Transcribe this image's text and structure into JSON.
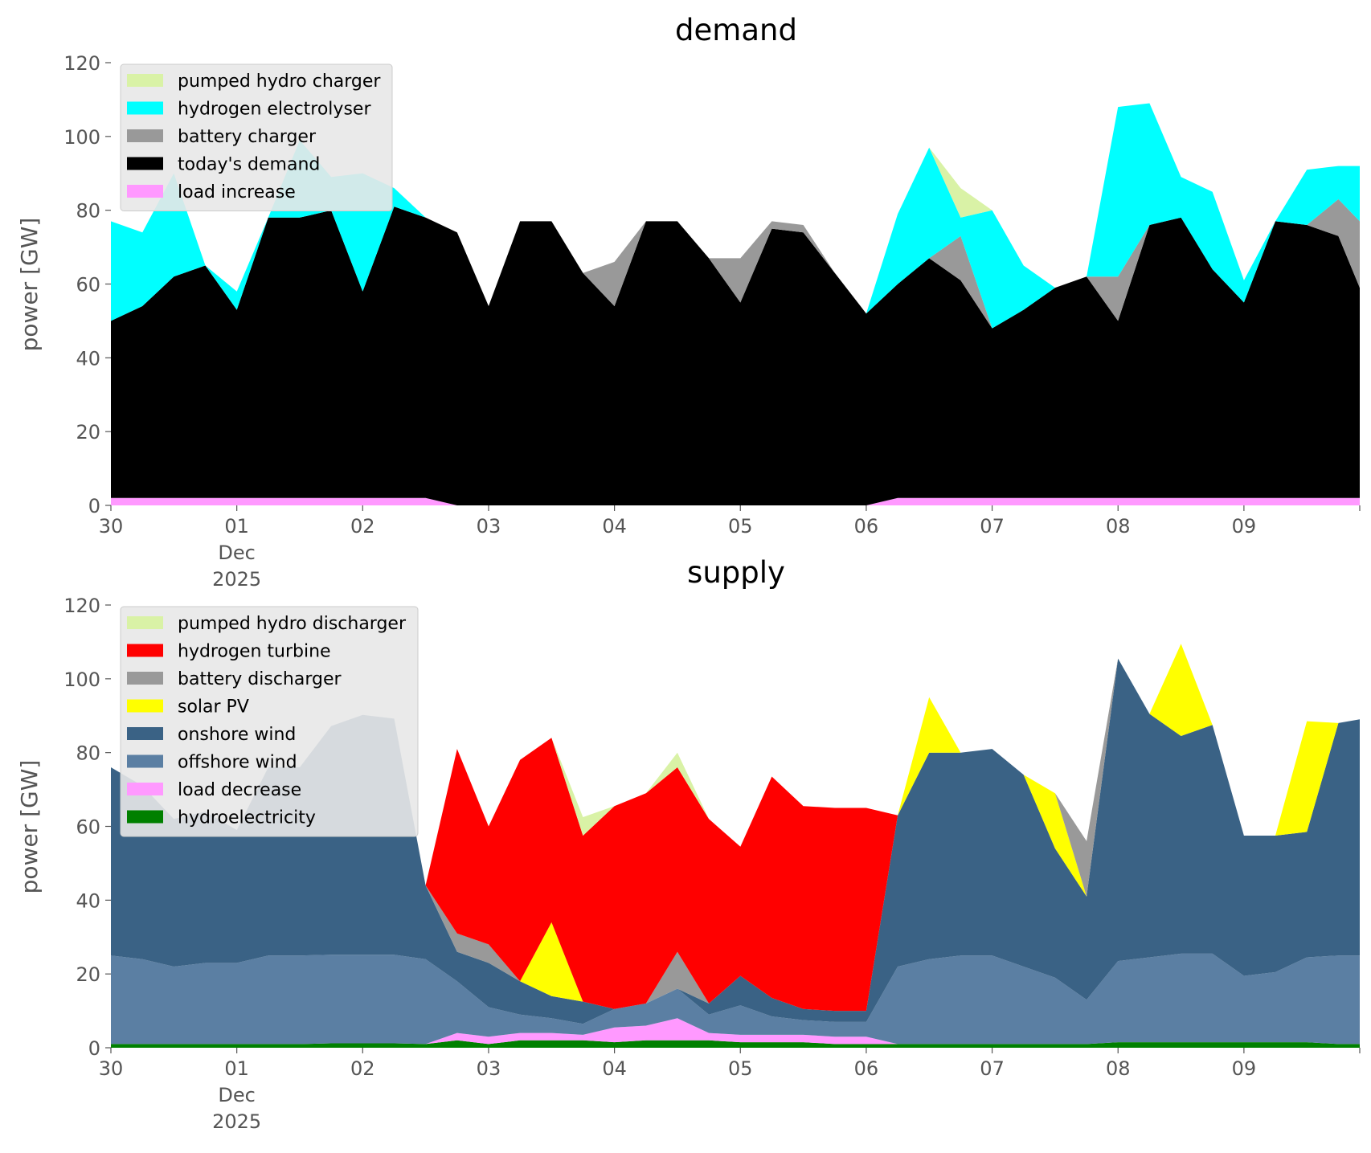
{
  "chart_data": [
    {
      "id": "demand",
      "type": "area",
      "stacked": true,
      "title": "demand",
      "xlabel": "",
      "ylabel": "power [GW]",
      "ylim": [
        0,
        120
      ],
      "yticks": [
        0,
        20,
        40,
        60,
        80,
        100,
        120
      ],
      "grid": false,
      "legend_position": "top-left",
      "x_unit": "days since 30 Nov 2025",
      "xlim": [
        0,
        9.92
      ],
      "x_ticks": [
        {
          "x": 0,
          "lines": [
            "30"
          ]
        },
        {
          "x": 1,
          "lines": [
            "01",
            "Dec",
            "2025"
          ]
        },
        {
          "x": 2,
          "lines": [
            "02"
          ]
        },
        {
          "x": 3,
          "lines": [
            "03"
          ]
        },
        {
          "x": 4,
          "lines": [
            "04"
          ]
        },
        {
          "x": 5,
          "lines": [
            "05"
          ]
        },
        {
          "x": 6,
          "lines": [
            "06"
          ]
        },
        {
          "x": 7,
          "lines": [
            "07"
          ]
        },
        {
          "x": 8,
          "lines": [
            "08"
          ]
        },
        {
          "x": 9,
          "lines": [
            "09"
          ]
        }
      ],
      "x": [
        0,
        0.25,
        0.5,
        0.75,
        1,
        1.25,
        1.5,
        1.75,
        2,
        2.25,
        2.5,
        2.75,
        3,
        3.25,
        3.5,
        3.75,
        4,
        4.25,
        4.5,
        4.75,
        5,
        5.25,
        5.5,
        5.75,
        6,
        6.25,
        6.5,
        6.75,
        7,
        7.25,
        7.5,
        7.75,
        8,
        8.25,
        8.5,
        8.75,
        9,
        9.25,
        9.5,
        9.75,
        9.92
      ],
      "series": [
        {
          "name": "load increase",
          "color": "#ff99ff",
          "values": [
            2,
            2,
            2,
            2,
            2,
            2,
            2,
            2,
            2,
            2,
            2,
            0,
            0,
            0,
            0,
            0,
            0,
            0,
            0,
            0,
            0,
            0,
            0,
            0,
            0,
            2,
            2,
            2,
            2,
            2,
            2,
            2,
            2,
            2,
            2,
            2,
            2,
            2,
            2,
            2,
            2
          ]
        },
        {
          "name": "today's demand",
          "color": "#000000",
          "values": [
            48,
            52,
            60,
            63,
            51,
            76,
            76,
            78,
            56,
            79,
            76,
            74,
            54,
            77,
            77,
            63,
            54,
            77,
            77,
            67,
            55,
            75,
            74,
            63,
            52,
            58,
            65,
            59,
            46,
            51,
            57,
            60,
            48,
            74,
            76,
            62,
            53,
            75,
            74,
            71,
            57
          ]
        },
        {
          "name": "battery charger",
          "color": "#999999",
          "values": [
            0,
            0,
            0,
            0,
            0,
            0,
            0,
            0,
            0,
            0,
            0,
            0,
            0,
            0,
            0,
            0,
            12,
            0,
            0,
            0,
            12,
            2,
            2,
            0,
            0,
            0,
            0,
            12,
            0,
            0,
            0,
            0,
            12,
            0,
            0,
            0,
            0,
            0,
            0,
            10,
            18
          ]
        },
        {
          "name": "hydrogen electrolyser",
          "color": "#00ffff",
          "values": [
            27,
            20,
            28,
            0,
            5,
            0,
            21,
            9,
            32,
            5,
            0,
            0,
            0,
            0,
            0,
            0,
            0,
            0,
            0,
            0,
            0,
            0,
            0,
            0,
            0,
            19,
            30,
            5,
            32,
            12,
            0,
            0,
            46,
            33,
            11,
            21,
            6,
            0,
            15,
            9,
            15
          ]
        },
        {
          "name": "pumped hydro charger",
          "color": "#d9f2a6",
          "values": [
            0,
            0,
            0,
            0,
            0,
            0,
            0,
            0,
            0,
            0,
            0,
            0,
            0,
            0,
            0,
            0,
            0,
            0,
            0,
            0,
            0,
            0,
            0,
            0,
            0,
            0,
            0,
            8,
            0,
            0,
            0,
            0,
            0,
            0,
            0,
            0,
            0,
            0,
            0,
            0,
            0
          ]
        }
      ],
      "legend": [
        "pumped hydro charger",
        "hydrogen electrolyser",
        "battery charger",
        "today's demand",
        "load increase"
      ]
    },
    {
      "id": "supply",
      "type": "area",
      "stacked": true,
      "title": "supply",
      "xlabel": "",
      "ylabel": "power [GW]",
      "ylim": [
        0,
        120
      ],
      "yticks": [
        0,
        20,
        40,
        60,
        80,
        100,
        120
      ],
      "grid": false,
      "legend_position": "top-left",
      "x_unit": "days since 30 Nov 2025",
      "xlim": [
        0,
        9.92
      ],
      "x_ticks": [
        {
          "x": 0,
          "lines": [
            "30"
          ]
        },
        {
          "x": 1,
          "lines": [
            "01",
            "Dec",
            "2025"
          ]
        },
        {
          "x": 2,
          "lines": [
            "02"
          ]
        },
        {
          "x": 3,
          "lines": [
            "03"
          ]
        },
        {
          "x": 4,
          "lines": [
            "04"
          ]
        },
        {
          "x": 5,
          "lines": [
            "05"
          ]
        },
        {
          "x": 6,
          "lines": [
            "06"
          ]
        },
        {
          "x": 7,
          "lines": [
            "07"
          ]
        },
        {
          "x": 8,
          "lines": [
            "08"
          ]
        },
        {
          "x": 9,
          "lines": [
            "09"
          ]
        }
      ],
      "x": [
        0,
        0.25,
        0.5,
        0.75,
        1,
        1.25,
        1.5,
        1.75,
        2,
        2.25,
        2.5,
        2.75,
        3,
        3.25,
        3.5,
        3.75,
        4,
        4.25,
        4.5,
        4.75,
        5,
        5.25,
        5.5,
        5.75,
        6,
        6.25,
        6.5,
        6.75,
        7,
        7.25,
        7.5,
        7.75,
        8,
        8.25,
        8.5,
        8.75,
        9,
        9.25,
        9.5,
        9.75,
        9.92
      ],
      "series": [
        {
          "name": "hydroelectricity",
          "color": "#008000",
          "values": [
            1,
            1,
            1,
            1,
            1,
            1,
            1,
            1.2,
            1.2,
            1.2,
            1,
            2,
            1,
            2,
            2,
            2,
            1.5,
            2,
            2,
            2,
            1.5,
            1.5,
            1.5,
            1,
            1,
            1,
            1,
            1,
            1,
            1,
            1,
            1,
            1.5,
            1.5,
            1.5,
            1.5,
            1.5,
            1.5,
            1.5,
            1,
            1
          ]
        },
        {
          "name": "load decrease",
          "color": "#ff99ff",
          "values": [
            0,
            0,
            0,
            0,
            0,
            0,
            0,
            0,
            0,
            0,
            0,
            2,
            2,
            2,
            2,
            1.5,
            4,
            4,
            6,
            2,
            2,
            2,
            2,
            2,
            2,
            0,
            0,
            0,
            0,
            0,
            0,
            0,
            0,
            0,
            0,
            0,
            0,
            0,
            0,
            0,
            0
          ]
        },
        {
          "name": "offshore wind",
          "color": "#5b7fa3",
          "values": [
            24,
            23,
            21,
            22,
            22,
            24,
            24,
            24,
            24,
            24,
            23,
            14,
            8,
            5,
            4,
            3,
            5,
            6,
            8,
            5,
            8,
            5,
            4,
            4,
            4,
            21,
            23,
            24,
            24,
            21,
            18,
            12,
            22,
            23,
            24,
            24,
            18,
            19,
            23,
            24,
            24
          ]
        },
        {
          "name": "onshore wind",
          "color": "#3a6285",
          "values": [
            51,
            47,
            40,
            41,
            36,
            51,
            51,
            62,
            65,
            64,
            20,
            8,
            12,
            9,
            6,
            6,
            0,
            0,
            0,
            3,
            8,
            5,
            3,
            3,
            3,
            41,
            56,
            55,
            56,
            52,
            35,
            28,
            82,
            66,
            59,
            62,
            38,
            37,
            34,
            63,
            64
          ]
        },
        {
          "name": "solar PV",
          "color": "#ffff00",
          "values": [
            0,
            0,
            0,
            0,
            0,
            0,
            0,
            0,
            0,
            0,
            0,
            0,
            0,
            0,
            20,
            0,
            0,
            0,
            0,
            0,
            0,
            0,
            0,
            0,
            0,
            0,
            15,
            0,
            0,
            0,
            15,
            0,
            0,
            0,
            25,
            0,
            0,
            0,
            30,
            0,
            0
          ]
        },
        {
          "name": "battery discharger",
          "color": "#999999",
          "values": [
            0,
            0,
            0,
            0,
            0,
            0,
            0,
            0,
            0,
            0,
            0,
            5,
            5,
            0,
            0,
            0,
            0,
            0,
            10,
            0,
            0,
            0,
            0,
            0,
            0,
            0,
            0,
            0,
            0,
            0,
            0,
            15,
            0,
            0,
            0,
            0,
            0,
            0,
            0,
            0,
            0
          ]
        },
        {
          "name": "hydrogen turbine",
          "color": "#ff0000",
          "values": [
            0,
            0,
            0,
            0,
            0,
            0,
            0,
            0,
            0,
            0,
            0,
            50,
            32,
            60,
            50,
            45,
            55,
            57,
            50,
            50,
            35,
            60,
            55,
            55,
            55,
            0,
            0,
            0,
            0,
            0,
            0,
            0,
            0,
            0,
            0,
            0,
            0,
            0,
            0,
            0,
            0
          ]
        },
        {
          "name": "pumped hydro discharger",
          "color": "#d9f2a6",
          "values": [
            0,
            0,
            0,
            0,
            0,
            0,
            0,
            0,
            0,
            0,
            0,
            0,
            0,
            0,
            0,
            5,
            0,
            0,
            4,
            0,
            0,
            0,
            0,
            0,
            0,
            0,
            0,
            0,
            0,
            0,
            0,
            0,
            0,
            0,
            0,
            0,
            0,
            0,
            0,
            0,
            0
          ]
        }
      ],
      "legend": [
        "pumped hydro discharger",
        "hydrogen turbine",
        "battery discharger",
        "solar PV",
        "onshore wind",
        "offshore wind",
        "load decrease",
        "hydroelectricity"
      ]
    }
  ]
}
